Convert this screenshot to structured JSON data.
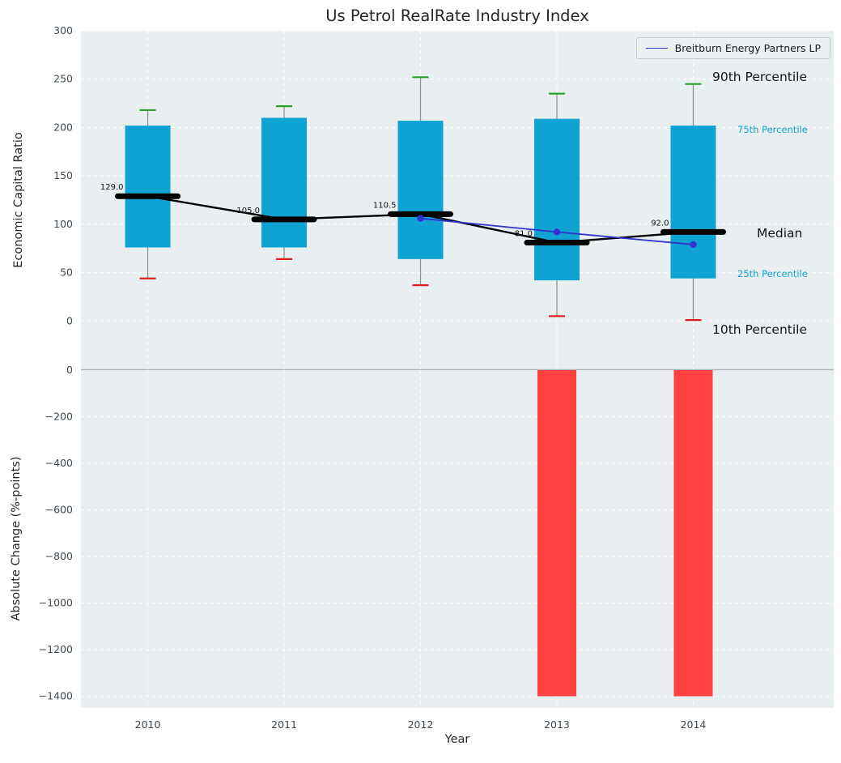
{
  "title": "Us Petrol RealRate Industry Index",
  "legend": {
    "label": "Breitburn Energy Partners LP",
    "position": "upper right"
  },
  "annotations": {
    "p90": "90th Percentile",
    "p75": "75th Percentile",
    "median": "Median",
    "p25": "25th Percentile",
    "p10": "10th Percentile"
  },
  "colors": {
    "box": "#0fa3d3",
    "p90_cap": "#2ca02c",
    "p10_cap": "#e02020",
    "median_line": "#000000",
    "company_line": "#3232cd",
    "neg_bar": "#ff4040",
    "plot_bg": "#e9eef1",
    "grid": "#ffffff",
    "tick_text": "#3e4a52",
    "cyan_text": "#0fa3d3",
    "whisker": "#8a8f92",
    "boundary": "#a8adb0"
  },
  "chart_data": [
    {
      "type": "boxplot",
      "title": "Us Petrol RealRate Industry Index",
      "ylabel": "Economic Capital Ratio",
      "categories": [
        2010,
        2011,
        2012,
        2013,
        2014
      ],
      "xtick_labels": [
        "2010",
        "2011",
        "2012",
        "2013",
        "2014"
      ],
      "ytick_values": [
        300,
        250,
        200,
        150,
        100,
        50,
        0
      ],
      "ytick_labels": [
        "300",
        "250",
        "200",
        "150",
        "100",
        "50",
        "0"
      ],
      "ylim": [
        -50,
        300
      ],
      "grid": true,
      "series": {
        "p90": [
          218,
          222,
          252,
          235,
          245
        ],
        "p75": [
          202,
          210,
          207,
          209,
          202
        ],
        "median": [
          129.0,
          105.0,
          110.5,
          81.0,
          92.0
        ],
        "p25": [
          76,
          76,
          64,
          42,
          44
        ],
        "p10": [
          44,
          64,
          37,
          5,
          1
        ]
      },
      "median_labels": [
        "129.0",
        "105.0",
        "110.5",
        "81.0",
        "92.0"
      ],
      "company": {
        "name": "Breitburn Energy Partners LP",
        "x": [
          2012,
          2013,
          2014
        ],
        "y": [
          106,
          92,
          79
        ]
      }
    },
    {
      "type": "bar",
      "ylabel": "Absolute Change (%-points)",
      "xlabel": "Year",
      "categories": [
        2010,
        2011,
        2012,
        2013,
        2014
      ],
      "xtick_labels": [
        "2010",
        "2011",
        "2012",
        "2013",
        "2014"
      ],
      "values": [
        null,
        null,
        null,
        -1400,
        -1400
      ],
      "ytick_values": [
        0,
        -200,
        -400,
        -600,
        -800,
        -1000,
        -1200,
        -1400
      ],
      "ytick_labels": [
        "0",
        "−200",
        "−400",
        "−600",
        "−800",
        "−1000",
        "−1200",
        "−1400"
      ],
      "ylim": [
        -1450,
        0
      ],
      "grid": true
    }
  ]
}
